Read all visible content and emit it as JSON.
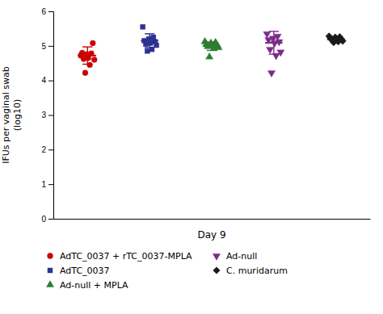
{
  "chart_data": {
    "type": "strip",
    "x_label": "Day 9",
    "y_label": "IFUs per vaginal swab\n(log10)",
    "ylim": [
      0,
      6
    ],
    "yticks": [
      0,
      1,
      2,
      3,
      4,
      5,
      6
    ],
    "tick_labels": "y",
    "legend": "bottom",
    "series": [
      {
        "name": "AdTC_0037 + rTC_0037-MPLA",
        "color": "#cc0000",
        "marker": "circle",
        "values": [
          4.72,
          4.78,
          4.76,
          4.8,
          5.08,
          4.65,
          4.62,
          4.6,
          4.45,
          4.22
        ],
        "mean": 4.72,
        "sd": 0.25
      },
      {
        "name": "AdTC_0037",
        "color": "#2e3192",
        "marker": "square",
        "values": [
          5.55,
          5.25,
          5.2,
          5.15,
          5.12,
          5.08,
          5.05,
          5.02,
          4.9,
          4.85
        ],
        "mean": 5.15,
        "sd": 0.2
      },
      {
        "name": "Ad-null + MPLA",
        "color": "#2e7d32",
        "marker": "triangle-up",
        "values": [
          5.12,
          5.1,
          5.08,
          5.05,
          5.02,
          5.0,
          4.98,
          4.95,
          4.92,
          4.68
        ],
        "mean": 4.99,
        "sd": 0.12
      },
      {
        "name": "Ad-null",
        "color": "#7b2d8b",
        "marker": "triangle-down",
        "values": [
          5.35,
          5.28,
          5.22,
          5.18,
          5.12,
          5.08,
          4.9,
          4.82,
          4.72,
          4.22
        ],
        "mean": 5.09,
        "sd": 0.33
      },
      {
        "name": "C. muridarum",
        "color": "#1a1a1a",
        "marker": "diamond",
        "values": [
          5.28,
          5.26,
          5.25,
          5.22,
          5.2,
          5.18,
          5.16,
          5.14,
          5.12,
          5.1
        ],
        "mean": 5.19,
        "sd": 0.06
      }
    ]
  }
}
